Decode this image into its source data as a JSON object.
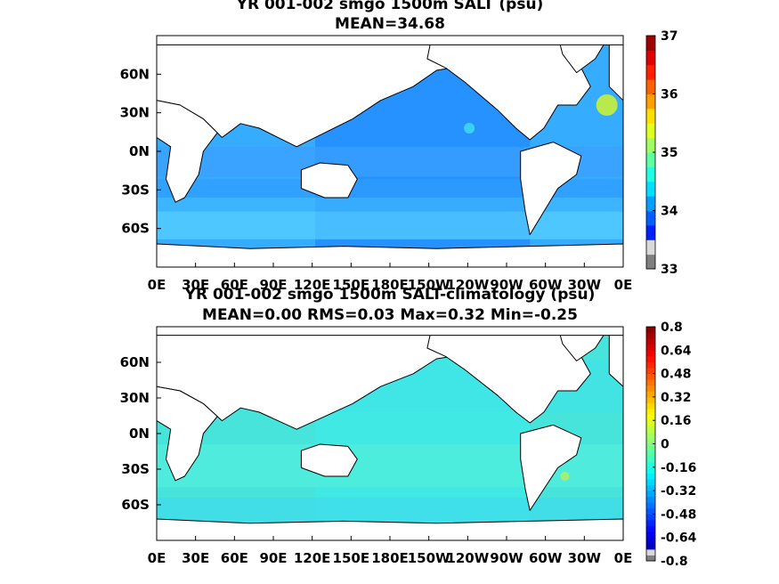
{
  "chart_data": [
    {
      "type": "heatmap",
      "title": "YR 001-002 smgo 1500m SALT (psu)",
      "subtitle": "MEAN=34.68",
      "x_ticks": [
        "0E",
        "30E",
        "60E",
        "90E",
        "120E",
        "150E",
        "180E",
        "150W",
        "120W",
        "90W",
        "60W",
        "30W",
        "0E"
      ],
      "y_ticks": [
        "60N",
        "30N",
        "0N",
        "30S",
        "60S"
      ],
      "colorbar": {
        "range": [
          33,
          37
        ],
        "ticks": [
          "33",
          "34",
          "35",
          "36",
          "37"
        ],
        "colormap": "jet"
      },
      "field_summary": {
        "mean": 34.68
      }
    },
    {
      "type": "heatmap",
      "title": "YR 001-002 smgo 1500m SALT-climatology (psu)",
      "subtitle": "MEAN=0.00   RMS=0.03   Max=0.32   Min=-0.25",
      "x_ticks": [
        "0E",
        "30E",
        "60E",
        "90E",
        "120E",
        "150E",
        "180E",
        "150W",
        "120W",
        "90W",
        "60W",
        "30W",
        "0E"
      ],
      "y_ticks": [
        "60N",
        "30N",
        "0N",
        "30S",
        "60S"
      ],
      "colorbar": {
        "range": [
          -0.8,
          0.8
        ],
        "ticks": [
          "-0.8",
          "-0.64",
          "-0.48",
          "-0.32",
          "-0.16",
          "0",
          "0.16",
          "0.32",
          "0.48",
          "0.64",
          "0.8"
        ],
        "colormap": "jet"
      },
      "field_summary": {
        "mean": 0.0,
        "rms": 0.03,
        "max": 0.32,
        "min": -0.25
      }
    }
  ]
}
